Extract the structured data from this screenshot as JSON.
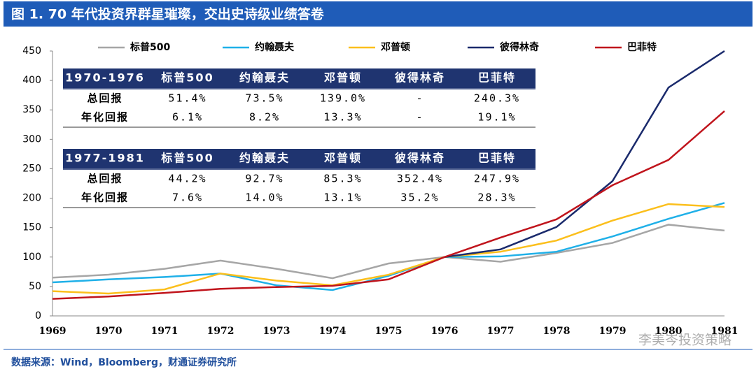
{
  "header": {
    "title": "图 1. 70 年代投资界群星璀璨，交出史诗级业绩答卷"
  },
  "chart_data": {
    "type": "line",
    "categories": [
      "1969",
      "1970",
      "1971",
      "1972",
      "1973",
      "1974",
      "1975",
      "1976",
      "1977",
      "1978",
      "1979",
      "1980",
      "1981"
    ],
    "ylim": [
      0,
      450
    ],
    "yticks": [
      0,
      50,
      100,
      150,
      200,
      250,
      300,
      350,
      400,
      450
    ],
    "legend": "top",
    "series": [
      {
        "name": "标普500",
        "color": "#a6a6a6",
        "values": [
          65,
          70,
          80,
          94,
          80,
          64,
          89,
          100,
          92,
          107,
          124,
          155,
          145
        ]
      },
      {
        "name": "约翰聂夫",
        "color": "#1fb0e8",
        "values": [
          57,
          62,
          66,
          72,
          52,
          44,
          68,
          100,
          101,
          109,
          135,
          165,
          192
        ]
      },
      {
        "name": "邓普顿",
        "color": "#fbbf1c",
        "values": [
          42,
          38,
          45,
          72,
          60,
          52,
          70,
          100,
          109,
          128,
          162,
          190,
          185
        ]
      },
      {
        "name": "彼得林奇",
        "color": "#1a2a6c",
        "values": [
          null,
          null,
          null,
          null,
          null,
          null,
          null,
          100,
          113,
          151,
          229,
          388,
          450
        ]
      },
      {
        "name": "巴菲特",
        "color": "#c0141c",
        "values": [
          29,
          33,
          39,
          46,
          49,
          51,
          62,
          100,
          133,
          164,
          222,
          265,
          348
        ]
      }
    ],
    "tables": [
      {
        "header": [
          "1970-1976",
          "标普500",
          "约翰聂夫",
          "邓普顿",
          "彼得林奇",
          "巴菲特"
        ],
        "rows": [
          [
            "总回报",
            "51.4%",
            "73.5%",
            "139.0%",
            "-",
            "240.3%"
          ],
          [
            "年化回报",
            "6.1%",
            "8.2%",
            "13.3%",
            "-",
            "19.1%"
          ]
        ]
      },
      {
        "header": [
          "1977-1981",
          "标普500",
          "约翰聂夫",
          "邓普顿",
          "彼得林奇",
          "巴菲特"
        ],
        "rows": [
          [
            "总回报",
            "44.2%",
            "92.7%",
            "85.3%",
            "352.4%",
            "247.9%"
          ],
          [
            "年化回报",
            "7.6%",
            "14.0%",
            "13.1%",
            "35.2%",
            "28.3%"
          ]
        ]
      }
    ]
  },
  "footer": {
    "source": "数据来源：Wind，Bloomberg，财通证券研究所",
    "watermark": "李美岑投资策略"
  }
}
